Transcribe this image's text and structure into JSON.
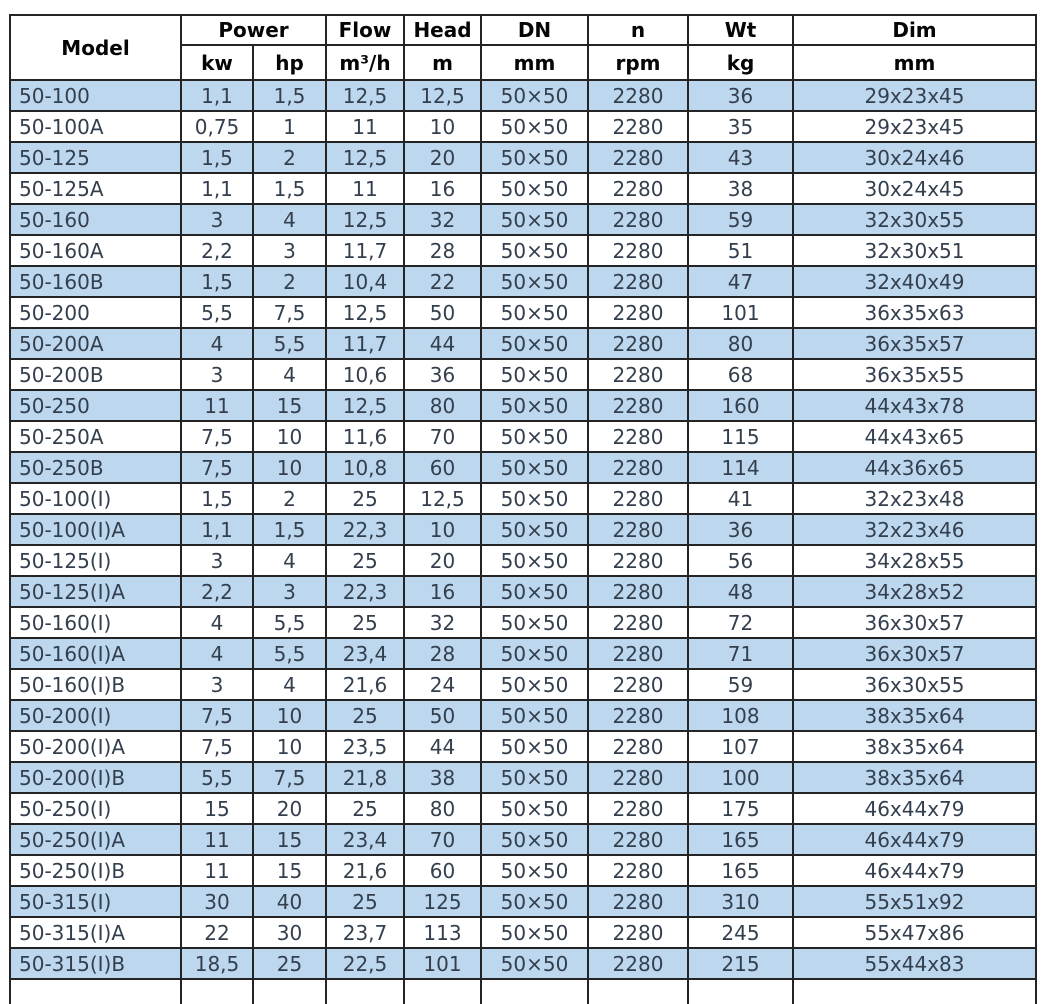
{
  "table": {
    "headers": {
      "model": "Model",
      "power": "Power",
      "flow": "Flow",
      "head": "Head",
      "dn": "DN",
      "n": "n",
      "wt": "Wt",
      "dim": "Dim",
      "units": {
        "kw": "kw",
        "hp": "hp",
        "flow": "m³/h",
        "head": "m",
        "dn": "mm",
        "n": "rpm",
        "wt": "kg",
        "dim": "mm"
      }
    },
    "col_keys": [
      "model",
      "power-kw",
      "power-hp",
      "flow",
      "head",
      "dn",
      "n",
      "wt",
      "dim"
    ],
    "rows": [
      [
        "50-100",
        "1,1",
        "1,5",
        "12,5",
        "12,5",
        "50×50",
        "2280",
        "36",
        "29x23x45"
      ],
      [
        "50-100A",
        "0,75",
        "1",
        "11",
        "10",
        "50×50",
        "2280",
        "35",
        "29x23x45"
      ],
      [
        "50-125",
        "1,5",
        "2",
        "12,5",
        "20",
        "50×50",
        "2280",
        "43",
        "30x24x46"
      ],
      [
        "50-125A",
        "1,1",
        "1,5",
        "11",
        "16",
        "50×50",
        "2280",
        "38",
        "30x24x45"
      ],
      [
        "50-160",
        "3",
        "4",
        "12,5",
        "32",
        "50×50",
        "2280",
        "59",
        "32x30x55"
      ],
      [
        "50-160A",
        "2,2",
        "3",
        "11,7",
        "28",
        "50×50",
        "2280",
        "51",
        "32x30x51"
      ],
      [
        "50-160B",
        "1,5",
        "2",
        "10,4",
        "22",
        "50×50",
        "2280",
        "47",
        "32x40x49"
      ],
      [
        "50-200",
        "5,5",
        "7,5",
        "12,5",
        "50",
        "50×50",
        "2280",
        "101",
        "36x35x63"
      ],
      [
        "50-200A",
        "4",
        "5,5",
        "11,7",
        "44",
        "50×50",
        "2280",
        "80",
        "36x35x57"
      ],
      [
        "50-200B",
        "3",
        "4",
        "10,6",
        "36",
        "50×50",
        "2280",
        "68",
        "36x35x55"
      ],
      [
        "50-250",
        "11",
        "15",
        "12,5",
        "80",
        "50×50",
        "2280",
        "160",
        "44x43x78"
      ],
      [
        "50-250A",
        "7,5",
        "10",
        "11,6",
        "70",
        "50×50",
        "2280",
        "115",
        "44x43x65"
      ],
      [
        "50-250B",
        "7,5",
        "10",
        "10,8",
        "60",
        "50×50",
        "2280",
        "114",
        "44x36x65"
      ],
      [
        "50-100(I)",
        "1,5",
        "2",
        "25",
        "12,5",
        "50×50",
        "2280",
        "41",
        "32x23x48"
      ],
      [
        "50-100(I)A",
        "1,1",
        "1,5",
        "22,3",
        "10",
        "50×50",
        "2280",
        "36",
        "32x23x46"
      ],
      [
        "50-125(I)",
        "3",
        "4",
        "25",
        "20",
        "50×50",
        "2280",
        "56",
        "34x28x55"
      ],
      [
        "50-125(I)A",
        "2,2",
        "3",
        "22,3",
        "16",
        "50×50",
        "2280",
        "48",
        "34x28x52"
      ],
      [
        "50-160(I)",
        "4",
        "5,5",
        "25",
        "32",
        "50×50",
        "2280",
        "72",
        "36x30x57"
      ],
      [
        "50-160(I)A",
        "4",
        "5,5",
        "23,4",
        "28",
        "50×50",
        "2280",
        "71",
        "36x30x57"
      ],
      [
        "50-160(I)B",
        "3",
        "4",
        "21,6",
        "24",
        "50×50",
        "2280",
        "59",
        "36x30x55"
      ],
      [
        "50-200(I)",
        "7,5",
        "10",
        "25",
        "50",
        "50×50",
        "2280",
        "108",
        "38x35x64"
      ],
      [
        "50-200(I)A",
        "7,5",
        "10",
        "23,5",
        "44",
        "50×50",
        "2280",
        "107",
        "38x35x64"
      ],
      [
        "50-200(I)B",
        "5,5",
        "7,5",
        "21,8",
        "38",
        "50×50",
        "2280",
        "100",
        "38x35x64"
      ],
      [
        "50-250(I)",
        "15",
        "20",
        "25",
        "80",
        "50×50",
        "2280",
        "175",
        "46x44x79"
      ],
      [
        "50-250(I)A",
        "11",
        "15",
        "23,4",
        "70",
        "50×50",
        "2280",
        "165",
        "46x44x79"
      ],
      [
        "50-250(I)B",
        "11",
        "15",
        "21,6",
        "60",
        "50×50",
        "2280",
        "165",
        "46x44x79"
      ],
      [
        "50-315(I)",
        "30",
        "40",
        "25",
        "125",
        "50×50",
        "2280",
        "310",
        "55x51x92"
      ],
      [
        "50-315(I)A",
        "22",
        "30",
        "23,7",
        "113",
        "50×50",
        "2280",
        "245",
        "55x47x86"
      ],
      [
        "50-315(I)B",
        "18,5",
        "25",
        "22,5",
        "101",
        "50×50",
        "2280",
        "215",
        "55x44x83"
      ]
    ]
  },
  "colors": {
    "stripe_blue": "#bdd7ee",
    "row_white": "#ffffff",
    "body_text": "#333f4d",
    "header_text": "#050505",
    "border": "#242424"
  }
}
